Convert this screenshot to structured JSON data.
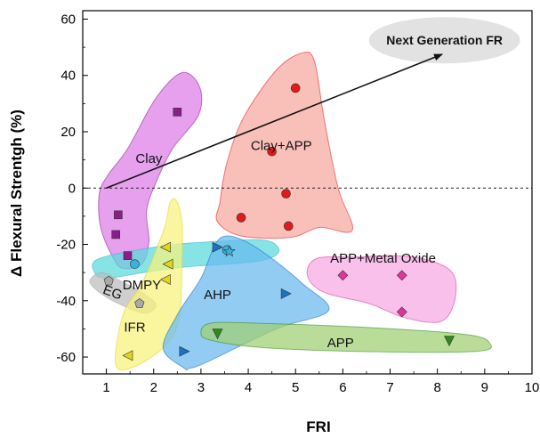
{
  "chart_data": {
    "type": "scatter",
    "xlabel": "FRI",
    "ylabel": "Δ Flexural Strentgh (%)",
    "xlim": [
      0.5,
      10
    ],
    "ylim": [
      -66,
      63
    ],
    "x_ticks": [
      1,
      2,
      3,
      4,
      5,
      6,
      7,
      8,
      9,
      10
    ],
    "y_ticks": [
      -60,
      -40,
      -20,
      0,
      20,
      40,
      60
    ],
    "reference_line": {
      "y": 0,
      "style": "dotted"
    },
    "callout": {
      "label": "Next Generation FR",
      "color": "#e2e2e2"
    },
    "arrow": {
      "from": [
        1.0,
        0.0
      ],
      "to": [
        8.1,
        47.5
      ]
    },
    "groups": [
      {
        "name": "Clay",
        "color": "#dd7be8",
        "marker": "square",
        "marker_color": "#8b1c8b",
        "points": [
          [
            2.5,
            27
          ],
          [
            1.25,
            -9.5
          ],
          [
            1.2,
            -16.5
          ],
          [
            1.45,
            -24
          ]
        ]
      },
      {
        "name": "Clay+APP",
        "color": "#f7a79e",
        "marker": "circle",
        "marker_color": "#e31a1a",
        "points": [
          [
            5.0,
            35.5
          ],
          [
            4.5,
            13
          ],
          [
            4.8,
            -2
          ],
          [
            3.85,
            -10.5
          ],
          [
            4.85,
            -13.5
          ]
        ]
      },
      {
        "name": "DMPY",
        "color": "#58dbd9",
        "marker": "circle",
        "marker_color": "#3ab2e0",
        "points": [
          [
            1.6,
            -27
          ],
          [
            3.55,
            -22
          ]
        ]
      },
      {
        "name": "EG",
        "color": "#bdbdbd",
        "marker": "pentagon",
        "marker_color": "#a9a9a9",
        "points": [
          [
            1.05,
            -33
          ],
          [
            1.7,
            -41
          ]
        ]
      },
      {
        "name": "IFR",
        "color": "#f6f27a",
        "marker": "triangle-left",
        "marker_color": "#e3d41e",
        "points": [
          [
            2.25,
            -21
          ],
          [
            2.3,
            -27
          ],
          [
            2.25,
            -32.5
          ],
          [
            1.45,
            -59.5
          ]
        ]
      },
      {
        "name": "AHP",
        "color": "#68b8ee",
        "marker": "triangle-right",
        "marker_color": "#1d70c2",
        "points": [
          [
            3.35,
            -21
          ],
          [
            4.8,
            -37.5
          ],
          [
            2.65,
            -58
          ]
        ]
      },
      {
        "name": "APP+Metal Oxide",
        "color": "#f7a8e4",
        "marker": "diamond",
        "marker_color": "#e0349c",
        "points": [
          [
            6.0,
            -31
          ],
          [
            7.25,
            -31
          ],
          [
            7.25,
            -44
          ]
        ]
      },
      {
        "name": "APP",
        "color": "#9fcf72",
        "marker": "triangle-down",
        "marker_color": "#2e8a1e",
        "points": [
          [
            3.35,
            -51.5
          ],
          [
            8.25,
            -54
          ]
        ]
      },
      {
        "name": "",
        "color": "#3ab2e0",
        "marker": "star",
        "marker_color": "#3ab2e0",
        "points": [
          [
            3.6,
            -22.5
          ]
        ]
      }
    ]
  }
}
